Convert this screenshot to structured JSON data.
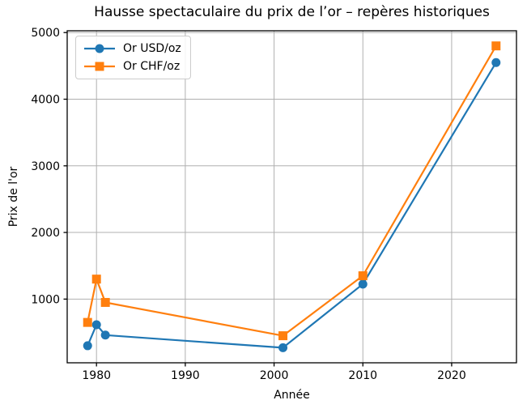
{
  "chart_data": {
    "type": "line",
    "title": "Hausse spectaculaire du prix de l’or – repères historiques",
    "xlabel": "Année",
    "ylabel": "Prix de l'or",
    "x": [
      1979,
      1980,
      1981,
      2001,
      2010,
      2025
    ],
    "series": [
      {
        "name": "Or USD/oz",
        "color": "#1f77b4",
        "marker": "circle",
        "values": [
          300,
          615,
          460,
          270,
          1225,
          4550
        ]
      },
      {
        "name": "Or CHF/oz",
        "color": "#ff7f0e",
        "marker": "square",
        "values": [
          650,
          1300,
          950,
          450,
          1350,
          4800
        ]
      }
    ],
    "xticks": [
      1980,
      1990,
      2000,
      2010,
      2020
    ],
    "yticks": [
      1000,
      2000,
      3000,
      4000,
      5000
    ],
    "xlim": [
      1976.7,
      2027.3
    ],
    "ylim": [
      44,
      5027
    ],
    "grid": true,
    "legend_position": "upper-left",
    "grid_color": "#b0b0b0",
    "axis_color": "#000000",
    "text_color": "#000000",
    "background_color": "#ffffff"
  }
}
